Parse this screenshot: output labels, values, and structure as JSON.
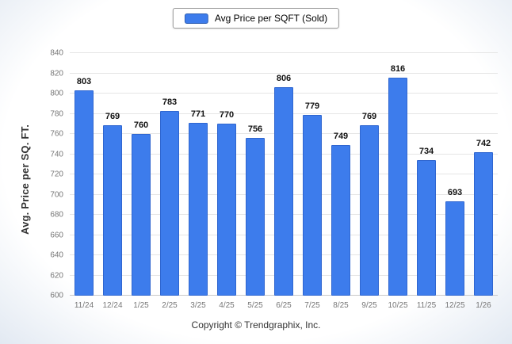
{
  "footer": {
    "copyright": "Copyright © Trendgraphix, Inc."
  },
  "chart_data": {
    "type": "bar",
    "title": "",
    "legend": "Avg Price per SQFT (Sold)",
    "legend_position": "top-center",
    "xlabel": "",
    "ylabel": "Avg. Price per SQ. FT.",
    "categories": [
      "11/24",
      "12/24",
      "1/25",
      "2/25",
      "3/25",
      "4/25",
      "5/25",
      "6/25",
      "7/25",
      "8/25",
      "9/25",
      "10/25",
      "11/25",
      "12/25",
      "1/26"
    ],
    "values": [
      803,
      769,
      760,
      783,
      771,
      770,
      756,
      806,
      779,
      749,
      769,
      816,
      734,
      693,
      742
    ],
    "ylim": [
      600,
      840
    ],
    "ytick_step": 20,
    "grid": true,
    "data_labels": true,
    "bar_color": "#3d7cec",
    "bar_border_color": "#2f66d0"
  }
}
